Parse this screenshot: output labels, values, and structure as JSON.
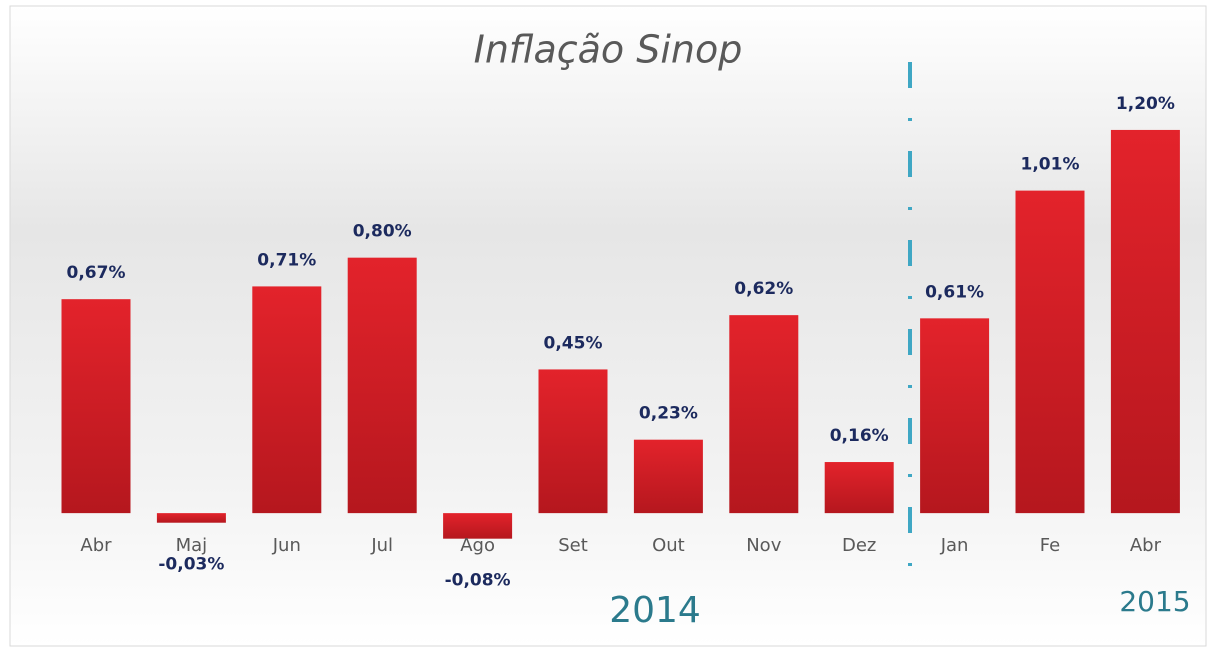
{
  "chart_data": {
    "type": "bar",
    "title": "Inflação Sinop",
    "categories": [
      "Abr",
      "Maj",
      "Jun",
      "Jul",
      "Ago",
      "Set",
      "Out",
      "Nov",
      "Dez",
      "Jan",
      "Fe",
      "Abr"
    ],
    "values": [
      0.67,
      -0.03,
      0.71,
      0.8,
      -0.08,
      0.45,
      0.23,
      0.62,
      0.16,
      0.61,
      1.01,
      1.2
    ],
    "value_labels": [
      "0,67%",
      "-0,03%",
      "0,71%",
      "0,80%",
      "-0,08%",
      "0,45%",
      "0,23%",
      "0,62%",
      "0,16%",
      "0,61%",
      "1,01%",
      "1,20%"
    ],
    "color": "#d42027",
    "ylim": [
      -0.2,
      1.3
    ],
    "annotations": [
      {
        "text": "2014"
      },
      {
        "text": "2015"
      }
    ]
  }
}
